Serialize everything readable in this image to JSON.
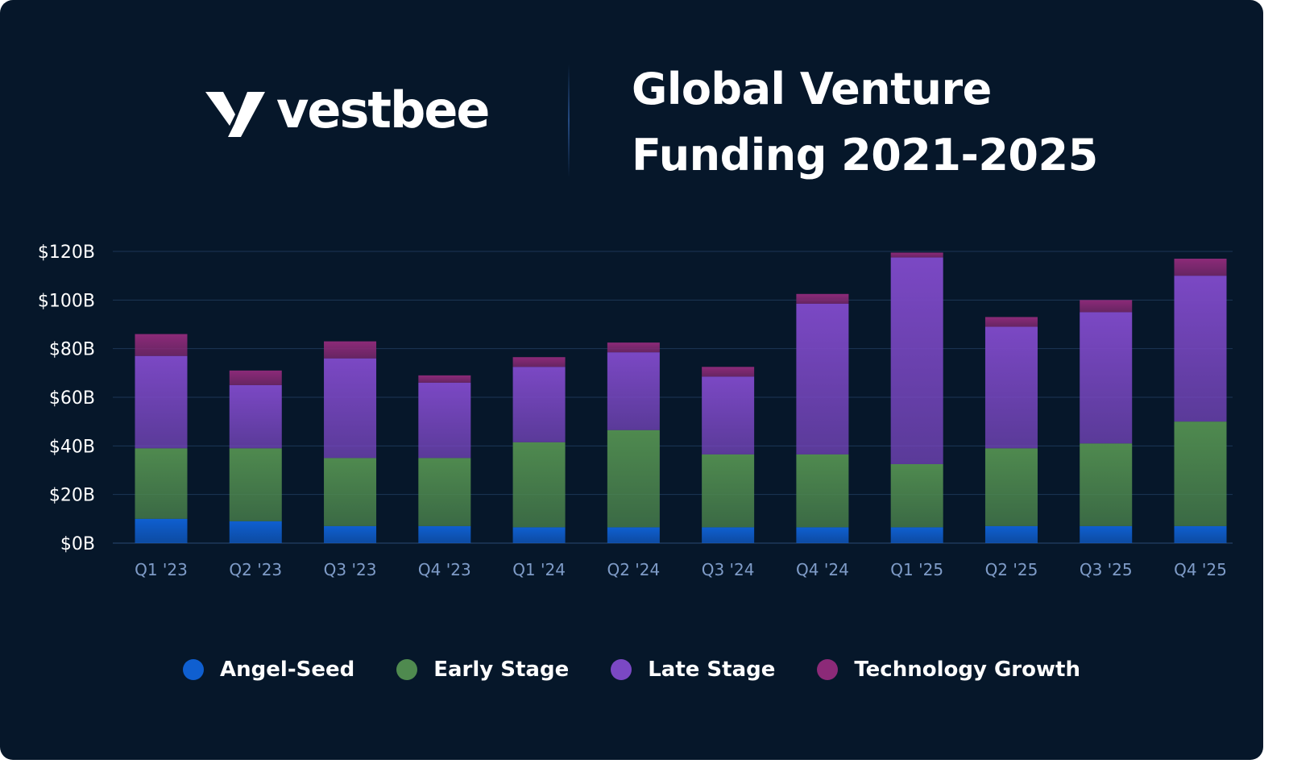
{
  "brand": {
    "name": "vestbee",
    "logo_icon": "vestbee-v-icon"
  },
  "title": "Global Venture\nFunding 2021-2025",
  "colors": {
    "background": "#06172a",
    "angel_seed": "#0f5fd0",
    "early_stage": "#4f8a4f",
    "late_stage": "#7b48c4",
    "technology_growth": "#8c2a78"
  },
  "chart_data": {
    "type": "bar",
    "stacked": true,
    "categories": [
      "Q1 '23",
      "Q2 '23",
      "Q3 '23",
      "Q4 '23",
      "Q1 '24",
      "Q2 '24",
      "Q3 '24",
      "Q4 '24",
      "Q1 '25",
      "Q2 '25",
      "Q3 '25",
      "Q4 '25"
    ],
    "series": [
      {
        "name": "Angel-Seed",
        "color": "#0f5fd0",
        "values": [
          10,
          9,
          7,
          7,
          6.5,
          6.5,
          6.5,
          6.5,
          6.5,
          7,
          7,
          7
        ]
      },
      {
        "name": "Early Stage",
        "color": "#4f8a4f",
        "values": [
          29,
          30,
          28,
          28,
          35,
          40,
          30,
          30,
          26,
          32,
          34,
          43
        ]
      },
      {
        "name": "Late Stage",
        "color": "#7b48c4",
        "values": [
          38,
          26,
          41,
          31,
          31,
          32,
          32,
          62,
          85,
          50,
          54,
          60
        ]
      },
      {
        "name": "Technology Growth",
        "color": "#8c2a78",
        "values": [
          9,
          6,
          7,
          3,
          4,
          4,
          4,
          4,
          2,
          4,
          5,
          7
        ]
      }
    ],
    "y_ticks": [
      "$0B",
      "$20B",
      "$40B",
      "$60B",
      "$80B",
      "$100B",
      "$120B"
    ],
    "ylim": [
      0,
      122
    ],
    "grid": true,
    "legend_position": "bottom-center"
  }
}
